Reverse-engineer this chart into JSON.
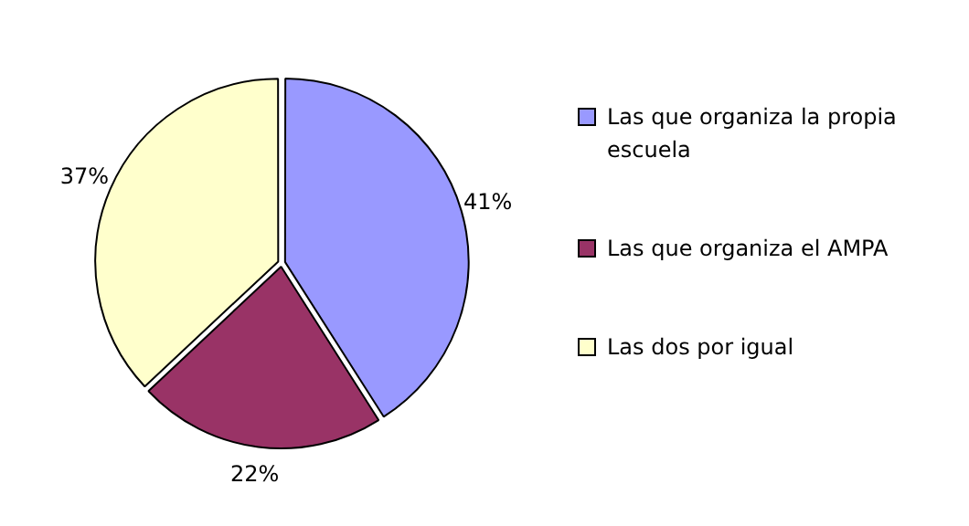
{
  "chart_data": {
    "type": "pie",
    "categories": [
      "Las que organiza la propia escuela",
      "Las que organiza el AMPA",
      "Las dos por igual"
    ],
    "values": [
      41,
      22,
      37
    ],
    "value_labels": [
      "41%",
      "22%",
      "37%"
    ],
    "colors": [
      "#9999ff",
      "#993366",
      "#ffffcc"
    ],
    "legend": "right"
  }
}
